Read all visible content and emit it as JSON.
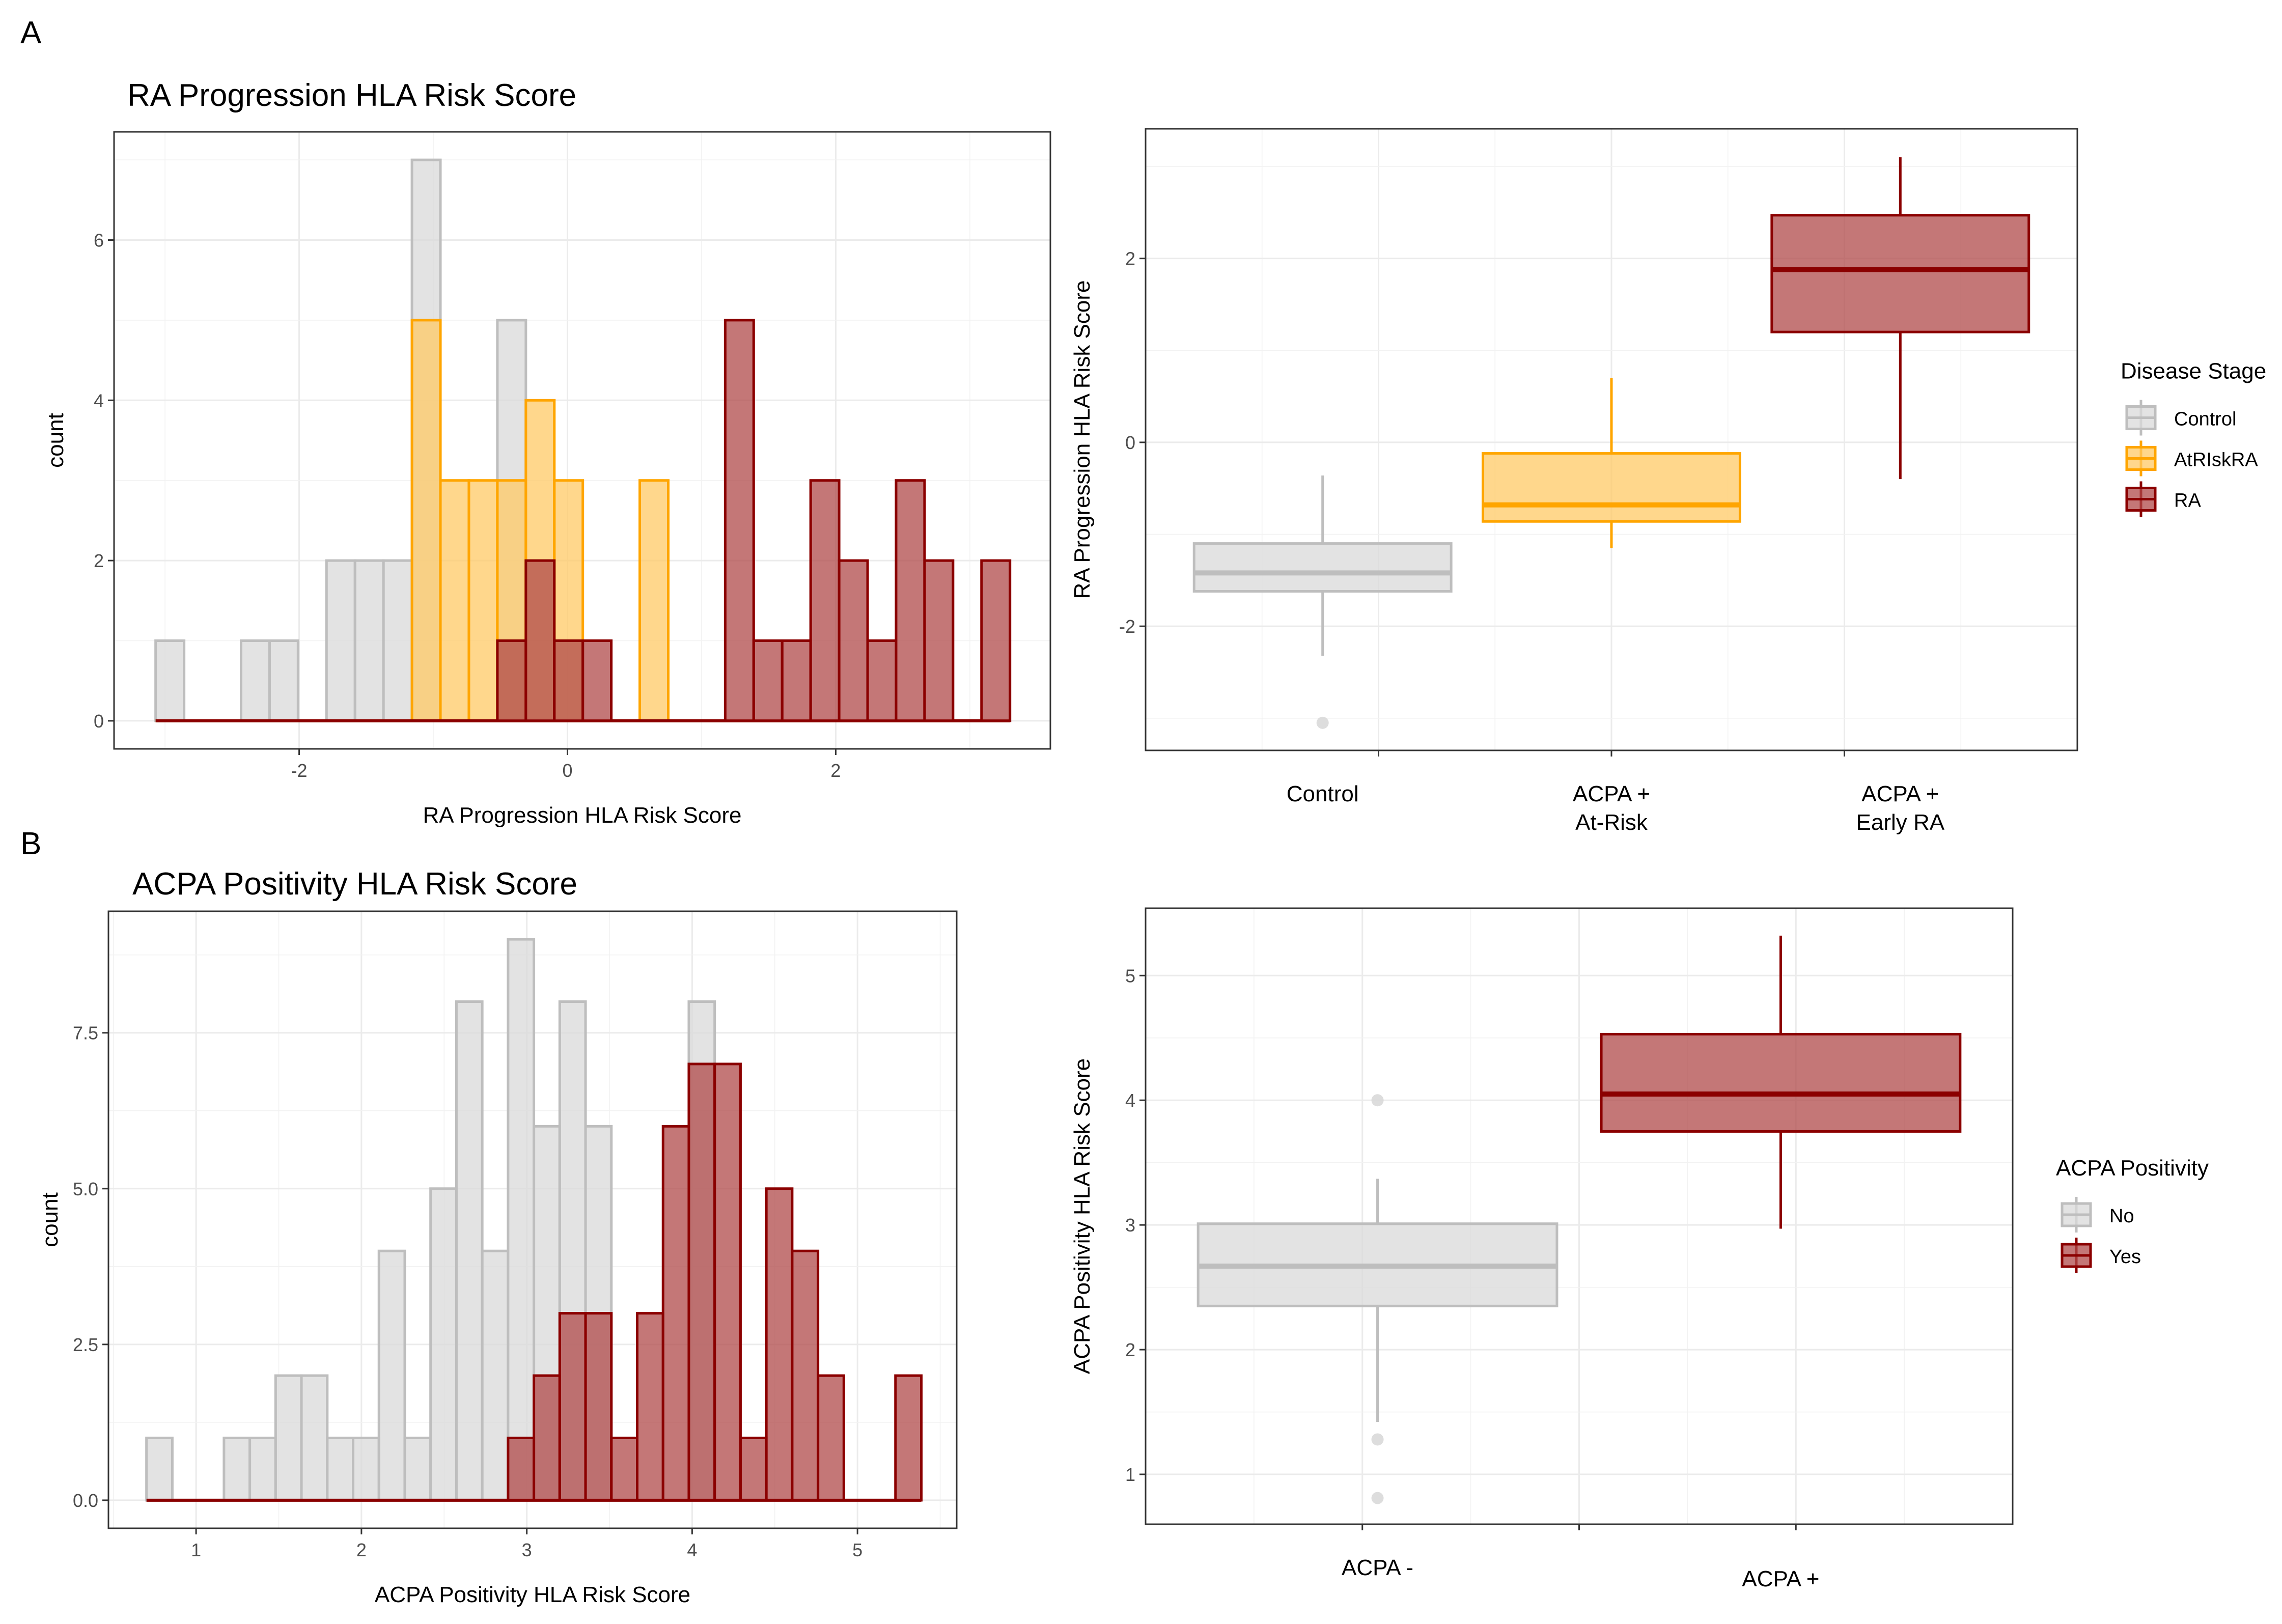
{
  "figure": {
    "panel_labels": [
      "A",
      "B"
    ],
    "colors": {
      "control_fill": "#d9d9d9",
      "control_line": "#bebebe",
      "atrisk_fill": "#ffc966",
      "atrisk_line": "#ffa500",
      "ra_fill": "#b04a4a",
      "ra_line": "#8b0000",
      "no_fill": "#d9d9d9",
      "no_line": "#bebebe",
      "yes_fill": "#b04a4a",
      "yes_line": "#8b0000"
    }
  },
  "chart_data": [
    {
      "id": "hist-a",
      "type": "bar",
      "subtype": "histogram-overlaid",
      "title": "RA Progression HLA Risk Score",
      "xlabel": "RA Progression HLA Risk Score",
      "ylabel": "count",
      "xlim": [
        -3.38,
        3.6
      ],
      "ylim": [
        -0.35,
        7.35
      ],
      "xticks": [
        -2,
        0,
        2
      ],
      "xtick_labels": [
        "-2",
        "0",
        "2"
      ],
      "xminor": [
        -3,
        -1,
        1,
        3
      ],
      "yticks": [
        0,
        2,
        4,
        6
      ],
      "ytick_labels": [
        "0",
        "2",
        "4",
        "6"
      ],
      "yminor": [
        1,
        3,
        5,
        7
      ],
      "grid": true,
      "bins": {
        "start": -3.07,
        "binwidth": 0.2123,
        "count": 30
      },
      "series": [
        {
          "name": "Control",
          "fill": "control_fill",
          "line": "control_line",
          "values": [
            1,
            0,
            0,
            1,
            1,
            0,
            2,
            2,
            2,
            7,
            0,
            0,
            5,
            0,
            0,
            0,
            0,
            0,
            0,
            0,
            0,
            0,
            0,
            0,
            0,
            0,
            0,
            0,
            0,
            0
          ]
        },
        {
          "name": "AtRIskRA",
          "fill": "atrisk_fill",
          "line": "atrisk_line",
          "values": [
            0,
            0,
            0,
            0,
            0,
            0,
            0,
            0,
            0,
            5,
            3,
            3,
            3,
            4,
            3,
            0,
            0,
            3,
            0,
            0,
            0,
            0,
            0,
            0,
            0,
            0,
            0,
            0,
            0,
            0
          ]
        },
        {
          "name": "RA",
          "fill": "ra_fill",
          "line": "ra_line",
          "values": [
            0,
            0,
            0,
            0,
            0,
            0,
            0,
            0,
            0,
            0,
            0,
            0,
            1,
            2,
            1,
            1,
            0,
            0,
            0,
            0,
            5,
            1,
            1,
            3,
            2,
            1,
            3,
            2,
            0,
            2
          ]
        }
      ]
    },
    {
      "id": "box-a",
      "type": "box",
      "title": "",
      "xlabel": "",
      "ylabel": "RA Progression HLA Risk Score",
      "ylim": [
        -3.35,
        3.41
      ],
      "yticks": [
        -2,
        0,
        2
      ],
      "ytick_labels": [
        "-2",
        "0",
        "2"
      ],
      "yminor": [
        -3,
        -1,
        1,
        3
      ],
      "grid": true,
      "categories": [
        "Control",
        "ACPA +\nAt-Risk",
        "ACPA +\nEarly RA"
      ],
      "legend": {
        "title": "Disease Stage",
        "position": "right",
        "entries": [
          {
            "label": "Control",
            "fill": "control_fill",
            "line": "control_line"
          },
          {
            "label": "AtRIskRA",
            "fill": "atrisk_fill",
            "line": "atrisk_line"
          },
          {
            "label": "RA",
            "fill": "ra_fill",
            "line": "ra_line"
          }
        ]
      },
      "boxes": [
        {
          "group": "Control",
          "fill": "control_fill",
          "line": "control_line",
          "whisker_low": -2.32,
          "q1": -1.62,
          "median": -1.42,
          "q3": -1.1,
          "whisker_high": -0.36,
          "outliers": [
            -3.05
          ]
        },
        {
          "group": "AtRIskRA",
          "fill": "atrisk_fill",
          "line": "atrisk_line",
          "whisker_low": -1.15,
          "q1": -0.86,
          "median": -0.68,
          "q3": -0.12,
          "whisker_high": 0.7,
          "outliers": []
        },
        {
          "group": "RA",
          "fill": "ra_fill",
          "line": "ra_line",
          "whisker_low": -0.4,
          "q1": 1.2,
          "median": 1.88,
          "q3": 2.47,
          "whisker_high": 3.1,
          "outliers": []
        }
      ]
    },
    {
      "id": "hist-b",
      "type": "bar",
      "subtype": "histogram-overlaid",
      "title": "ACPA Positivity HLA Risk Score",
      "xlabel": "ACPA Positivity HLA Risk Score",
      "ylabel": "count",
      "xlim": [
        0.47,
        5.6
      ],
      "ylim": [
        -0.45,
        9.45
      ],
      "xticks": [
        1,
        2,
        3,
        4,
        5
      ],
      "xtick_labels": [
        "1",
        "2",
        "3",
        "4",
        "5"
      ],
      "xminor": [
        0.5,
        1.5,
        2.5,
        3.5,
        4.5,
        5.5
      ],
      "yticks": [
        0,
        2.5,
        5,
        7.5
      ],
      "ytick_labels": [
        "0.0",
        "2.5",
        "5.0",
        "7.5"
      ],
      "yminor": [
        1.25,
        3.75,
        6.25,
        8.75
      ],
      "grid": true,
      "bins": {
        "start": 0.7,
        "binwidth": 0.1562,
        "count": 30
      },
      "series": [
        {
          "name": "No",
          "fill": "no_fill",
          "line": "no_line",
          "values": [
            1,
            0,
            0,
            1,
            1,
            2,
            2,
            1,
            1,
            4,
            1,
            5,
            8,
            4,
            9,
            6,
            8,
            6,
            0,
            0,
            0,
            8,
            0,
            0,
            0,
            0,
            0,
            0,
            0,
            0
          ]
        },
        {
          "name": "Yes",
          "fill": "yes_fill",
          "line": "yes_line",
          "values": [
            0,
            0,
            0,
            0,
            0,
            0,
            0,
            0,
            0,
            0,
            0,
            0,
            0,
            0,
            1,
            2,
            3,
            3,
            1,
            3,
            6,
            7,
            7,
            1,
            5,
            4,
            2,
            0,
            0,
            2
          ]
        }
      ]
    },
    {
      "id": "box-b",
      "type": "box",
      "title": "",
      "xlabel": "",
      "ylabel": "ACPA Positivity HLA Risk Score",
      "ylim": [
        0.6,
        5.54
      ],
      "yticks": [
        1,
        2,
        3,
        4,
        5
      ],
      "ytick_labels": [
        "1",
        "2",
        "3",
        "4",
        "5"
      ],
      "yminor": [
        1.5,
        2.5,
        3.5,
        4.5
      ],
      "grid": true,
      "categories": [
        "ACPA -",
        "",
        "ACPA +"
      ],
      "legend": {
        "title": "ACPA Positivity",
        "position": "right",
        "entries": [
          {
            "label": "No",
            "fill": "no_fill",
            "line": "no_line"
          },
          {
            "label": "Yes",
            "fill": "yes_fill",
            "line": "yes_line"
          }
        ]
      },
      "boxes": [
        {
          "group": "No",
          "fill": "no_fill",
          "line": "no_line",
          "whisker_low": 1.42,
          "q1": 2.35,
          "median": 2.67,
          "q3": 3.01,
          "whisker_high": 3.37,
          "outliers": [
            4.0,
            1.28,
            0.81
          ]
        },
        {
          "group": "Yes",
          "fill": "yes_fill",
          "line": "yes_line",
          "whisker_low": 2.97,
          "q1": 3.75,
          "median": 4.05,
          "q3": 4.53,
          "whisker_high": 5.32,
          "outliers": []
        }
      ]
    }
  ]
}
